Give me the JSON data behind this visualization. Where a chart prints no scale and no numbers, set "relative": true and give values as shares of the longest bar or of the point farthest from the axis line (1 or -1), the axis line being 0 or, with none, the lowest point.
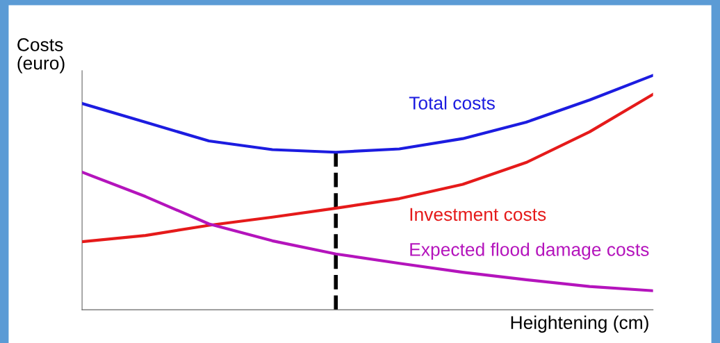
{
  "chart_data": {
    "type": "line",
    "relative": true,
    "xlabel": "Heightening (cm)",
    "ylabel": "Costs\n(euro)",
    "categories": [
      null,
      null,
      null,
      null,
      null,
      null,
      null,
      null,
      null,
      null
    ],
    "series": [
      {
        "name": "Total costs",
        "color": "#1c1ce0",
        "values": [
          0.88,
          0.8,
          0.72,
          0.683,
          0.672,
          0.686,
          0.73,
          0.8,
          0.895,
          1.0
        ]
      },
      {
        "name": "Investment costs",
        "color": "#e51a1a",
        "values": [
          0.29,
          0.317,
          0.36,
          0.395,
          0.433,
          0.474,
          0.535,
          0.628,
          0.759,
          0.919
        ]
      },
      {
        "name": "Expected flood damage costs",
        "color": "#b414bc",
        "values": [
          0.587,
          0.483,
          0.366,
          0.294,
          0.238,
          0.198,
          0.16,
          0.128,
          0.099,
          0.081
        ]
      }
    ],
    "grid": false,
    "legend": false,
    "marker": "none",
    "line_style": "solid"
  }
}
